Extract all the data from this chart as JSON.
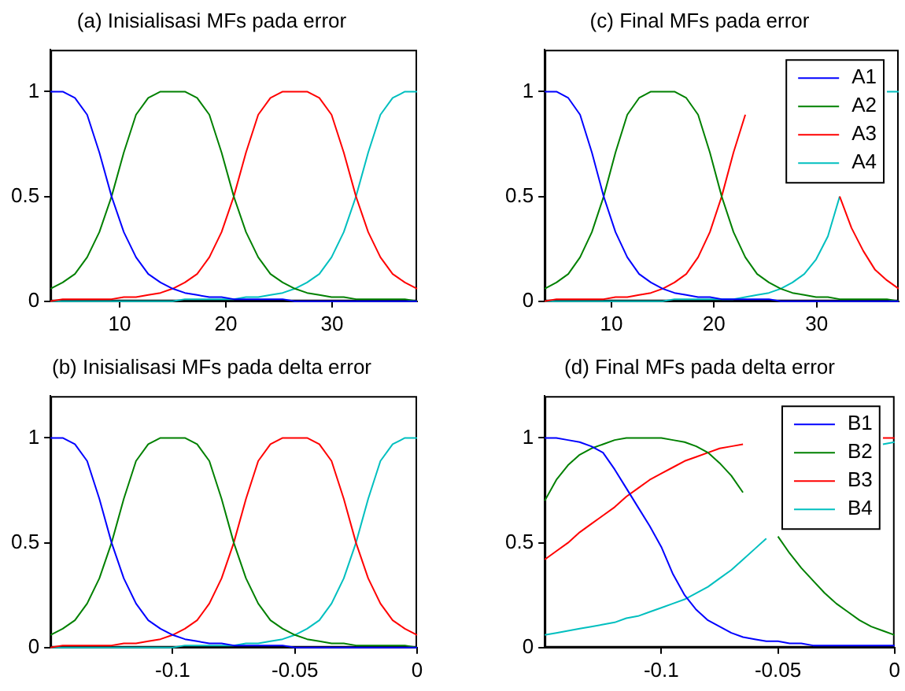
{
  "chart_data": [
    {
      "type": "line",
      "title": "(a) Inisialisasi MFs pada error",
      "x": [
        3.5,
        4.65,
        5.8,
        6.95,
        8.1,
        9.25,
        10.4,
        11.55,
        12.7,
        13.85,
        15,
        16.15,
        17.3,
        18.45,
        19.6,
        20.75,
        21.9,
        23.05,
        24.2,
        25.35,
        26.5,
        27.65,
        28.8,
        29.95,
        31.1,
        32.25,
        33.4,
        34.55,
        35.7,
        36.85,
        38
      ],
      "xlim": [
        3.5,
        38
      ],
      "xticks": [
        10,
        20,
        30
      ],
      "ylim": [
        0,
        1.2
      ],
      "yticks": [
        0,
        0.5,
        1
      ],
      "grid": false,
      "legend": false,
      "series": [
        {
          "color": "#0000ff",
          "values": [
            1,
            1,
            0.97,
            0.89,
            0.71,
            0.5,
            0.33,
            0.21,
            0.13,
            0.09,
            0.06,
            0.04,
            0.03,
            0.02,
            0.02,
            0.01,
            0.01,
            0.01,
            0.01,
            0.01,
            0,
            0,
            0,
            0,
            0,
            0,
            0,
            0,
            0,
            0,
            0
          ]
        },
        {
          "color": "#008000",
          "values": [
            0.06,
            0.09,
            0.13,
            0.21,
            0.33,
            0.5,
            0.71,
            0.89,
            0.97,
            1,
            1,
            1,
            0.97,
            0.89,
            0.71,
            0.5,
            0.33,
            0.21,
            0.13,
            0.09,
            0.06,
            0.04,
            0.03,
            0.02,
            0.02,
            0.01,
            0.01,
            0.01,
            0.01,
            0.01,
            0
          ]
        },
        {
          "color": "#ff0000",
          "values": [
            0,
            0.01,
            0.01,
            0.01,
            0.01,
            0.01,
            0.02,
            0.02,
            0.03,
            0.04,
            0.06,
            0.09,
            0.13,
            0.21,
            0.33,
            0.5,
            0.71,
            0.89,
            0.97,
            1,
            1,
            1,
            0.97,
            0.89,
            0.71,
            0.5,
            0.33,
            0.21,
            0.13,
            0.09,
            0.06
          ]
        },
        {
          "color": "#00bfbf",
          "values": [
            0,
            0,
            0,
            0,
            0,
            0,
            0,
            0,
            0,
            0,
            0,
            0.01,
            0.01,
            0.01,
            0.01,
            0.01,
            0.02,
            0.02,
            0.03,
            0.04,
            0.06,
            0.09,
            0.13,
            0.21,
            0.33,
            0.5,
            0.71,
            0.89,
            0.97,
            1,
            1
          ]
        }
      ]
    },
    {
      "type": "line",
      "title": "(c) Final MFs pada error",
      "x": [
        3.5,
        4.65,
        5.8,
        6.95,
        8.1,
        9.25,
        10.4,
        11.55,
        12.7,
        13.85,
        15,
        16.15,
        17.3,
        18.45,
        19.6,
        20.75,
        21.9,
        23.05,
        24.2,
        25.35,
        26.5,
        27.65,
        28.8,
        29.95,
        31.1,
        32.25,
        33.4,
        34.55,
        35.7,
        36.85,
        38
      ],
      "xlim": [
        3.5,
        38
      ],
      "xticks": [
        10,
        20,
        30
      ],
      "ylim": [
        0,
        1.2
      ],
      "yticks": [
        0,
        0.5,
        1
      ],
      "grid": false,
      "legend": "top right",
      "series": [
        {
          "name": "A1",
          "color": "#0000ff",
          "values": [
            1,
            1,
            0.97,
            0.89,
            0.71,
            0.5,
            0.33,
            0.21,
            0.13,
            0.09,
            0.06,
            0.04,
            0.03,
            0.02,
            0.02,
            0.01,
            0.01,
            0.01,
            0.01,
            0.01,
            0,
            0,
            0,
            0,
            0,
            0,
            0,
            0,
            0,
            0,
            0
          ]
        },
        {
          "name": "A2",
          "color": "#008000",
          "values": [
            0.06,
            0.09,
            0.13,
            0.21,
            0.33,
            0.5,
            0.71,
            0.89,
            0.97,
            1,
            1,
            1,
            0.97,
            0.89,
            0.71,
            0.5,
            0.33,
            0.21,
            0.13,
            0.09,
            0.06,
            0.04,
            0.03,
            0.02,
            0.02,
            0.01,
            0.01,
            0.01,
            0.01,
            0.01,
            0
          ]
        },
        {
          "name": "A3",
          "color": "#ff0000",
          "values": [
            0,
            0.01,
            0.01,
            0.01,
            0.01,
            0.01,
            0.02,
            0.02,
            0.03,
            0.04,
            0.06,
            0.09,
            0.13,
            0.21,
            0.33,
            0.5,
            0.71,
            0.89,
            null,
            null,
            null,
            null,
            null,
            null,
            null,
            0.5,
            0.35,
            0.24,
            0.15,
            0.1,
            0.06
          ]
        },
        {
          "name": "A4",
          "color": "#00bfbf",
          "values": [
            0,
            0,
            0,
            0,
            0,
            0,
            0,
            0,
            0,
            0,
            0,
            0.01,
            0.01,
            0.01,
            0.01,
            0.01,
            0.01,
            0.02,
            0.03,
            0.04,
            0.06,
            0.09,
            0.13,
            0.2,
            0.31,
            0.5,
            null,
            null,
            null,
            1,
            1
          ]
        }
      ]
    },
    {
      "type": "line",
      "title": "(b) Inisialisasi MFs pada delta error",
      "x": [
        -0.15,
        -0.145,
        -0.14,
        -0.135,
        -0.13,
        -0.125,
        -0.12,
        -0.115,
        -0.11,
        -0.105,
        -0.1,
        -0.095,
        -0.09,
        -0.085,
        -0.08,
        -0.075,
        -0.07,
        -0.065,
        -0.06,
        -0.055,
        -0.05,
        -0.045,
        -0.04,
        -0.035,
        -0.03,
        -0.025,
        -0.02,
        -0.015,
        -0.01,
        -0.005,
        0
      ],
      "xlim": [
        -0.15,
        0
      ],
      "xticks": [
        -0.1,
        -0.05,
        0
      ],
      "ylim": [
        0,
        1.2
      ],
      "yticks": [
        0,
        0.5,
        1
      ],
      "grid": false,
      "legend": false,
      "series": [
        {
          "color": "#0000ff",
          "values": [
            1,
            1,
            0.97,
            0.89,
            0.71,
            0.5,
            0.33,
            0.21,
            0.13,
            0.09,
            0.06,
            0.04,
            0.03,
            0.02,
            0.02,
            0.01,
            0.01,
            0.01,
            0.01,
            0.01,
            0,
            0,
            0,
            0,
            0,
            0,
            0,
            0,
            0,
            0,
            0
          ]
        },
        {
          "color": "#008000",
          "values": [
            0.06,
            0.09,
            0.13,
            0.21,
            0.33,
            0.5,
            0.71,
            0.89,
            0.97,
            1,
            1,
            1,
            0.97,
            0.89,
            0.71,
            0.5,
            0.33,
            0.21,
            0.13,
            0.09,
            0.06,
            0.04,
            0.03,
            0.02,
            0.02,
            0.01,
            0.01,
            0.01,
            0.01,
            0.01,
            0
          ]
        },
        {
          "color": "#ff0000",
          "values": [
            0,
            0.01,
            0.01,
            0.01,
            0.01,
            0.01,
            0.02,
            0.02,
            0.03,
            0.04,
            0.06,
            0.09,
            0.13,
            0.21,
            0.33,
            0.5,
            0.71,
            0.89,
            0.97,
            1,
            1,
            1,
            0.97,
            0.89,
            0.71,
            0.5,
            0.33,
            0.21,
            0.13,
            0.09,
            0.06
          ]
        },
        {
          "color": "#00bfbf",
          "values": [
            0,
            0,
            0,
            0,
            0,
            0,
            0,
            0,
            0,
            0,
            0,
            0.01,
            0.01,
            0.01,
            0.01,
            0.01,
            0.02,
            0.02,
            0.03,
            0.04,
            0.06,
            0.09,
            0.13,
            0.21,
            0.33,
            0.5,
            0.71,
            0.89,
            0.97,
            1,
            1
          ]
        }
      ]
    },
    {
      "type": "line",
      "title": "(d) Final MFs pada delta error",
      "x": [
        -0.15,
        -0.145,
        -0.14,
        -0.135,
        -0.13,
        -0.125,
        -0.12,
        -0.115,
        -0.11,
        -0.105,
        -0.1,
        -0.095,
        -0.09,
        -0.085,
        -0.08,
        -0.075,
        -0.07,
        -0.065,
        -0.06,
        -0.055,
        -0.05,
        -0.045,
        -0.04,
        -0.035,
        -0.03,
        -0.025,
        -0.02,
        -0.015,
        -0.01,
        -0.005,
        0
      ],
      "xlim": [
        -0.15,
        0
      ],
      "xticks": [
        -0.1,
        -0.05,
        0
      ],
      "ylim": [
        0,
        1.2
      ],
      "yticks": [
        0,
        0.5,
        1
      ],
      "grid": false,
      "legend": "top right",
      "series": [
        {
          "name": "B1",
          "color": "#0000ff",
          "values": [
            1,
            1,
            0.99,
            0.98,
            0.96,
            0.93,
            0.85,
            0.76,
            0.67,
            0.58,
            0.48,
            0.35,
            0.25,
            0.18,
            0.13,
            0.1,
            0.07,
            0.05,
            0.04,
            0.03,
            0.03,
            0.02,
            0.02,
            0.01,
            0.01,
            0.01,
            0.01,
            0.01,
            0.01,
            0.01,
            0.01
          ]
        },
        {
          "name": "B2",
          "color": "#008000",
          "values": [
            0.7,
            0.8,
            0.87,
            0.92,
            0.95,
            0.97,
            0.99,
            1,
            1,
            1,
            1,
            0.99,
            0.98,
            0.96,
            0.93,
            0.88,
            0.82,
            0.74,
            null,
            null,
            0.53,
            0.45,
            0.38,
            0.32,
            0.26,
            0.21,
            0.17,
            0.13,
            0.1,
            0.08,
            0.06
          ]
        },
        {
          "name": "B3",
          "color": "#ff0000",
          "values": [
            0.42,
            0.46,
            0.5,
            0.55,
            0.59,
            0.63,
            0.67,
            0.72,
            0.76,
            0.8,
            0.83,
            0.86,
            0.89,
            0.91,
            0.93,
            0.95,
            0.96,
            0.97,
            null,
            null,
            null,
            null,
            null,
            null,
            null,
            null,
            null,
            null,
            null,
            1,
            1
          ]
        },
        {
          "name": "B4",
          "color": "#00bfbf",
          "values": [
            0.06,
            0.07,
            0.08,
            0.09,
            0.1,
            0.11,
            0.12,
            0.14,
            0.15,
            0.17,
            0.19,
            0.21,
            0.23,
            0.26,
            0.29,
            0.33,
            0.37,
            0.42,
            0.47,
            0.52,
            null,
            null,
            null,
            null,
            null,
            null,
            null,
            null,
            null,
            0.97,
            0.98
          ]
        }
      ]
    }
  ]
}
